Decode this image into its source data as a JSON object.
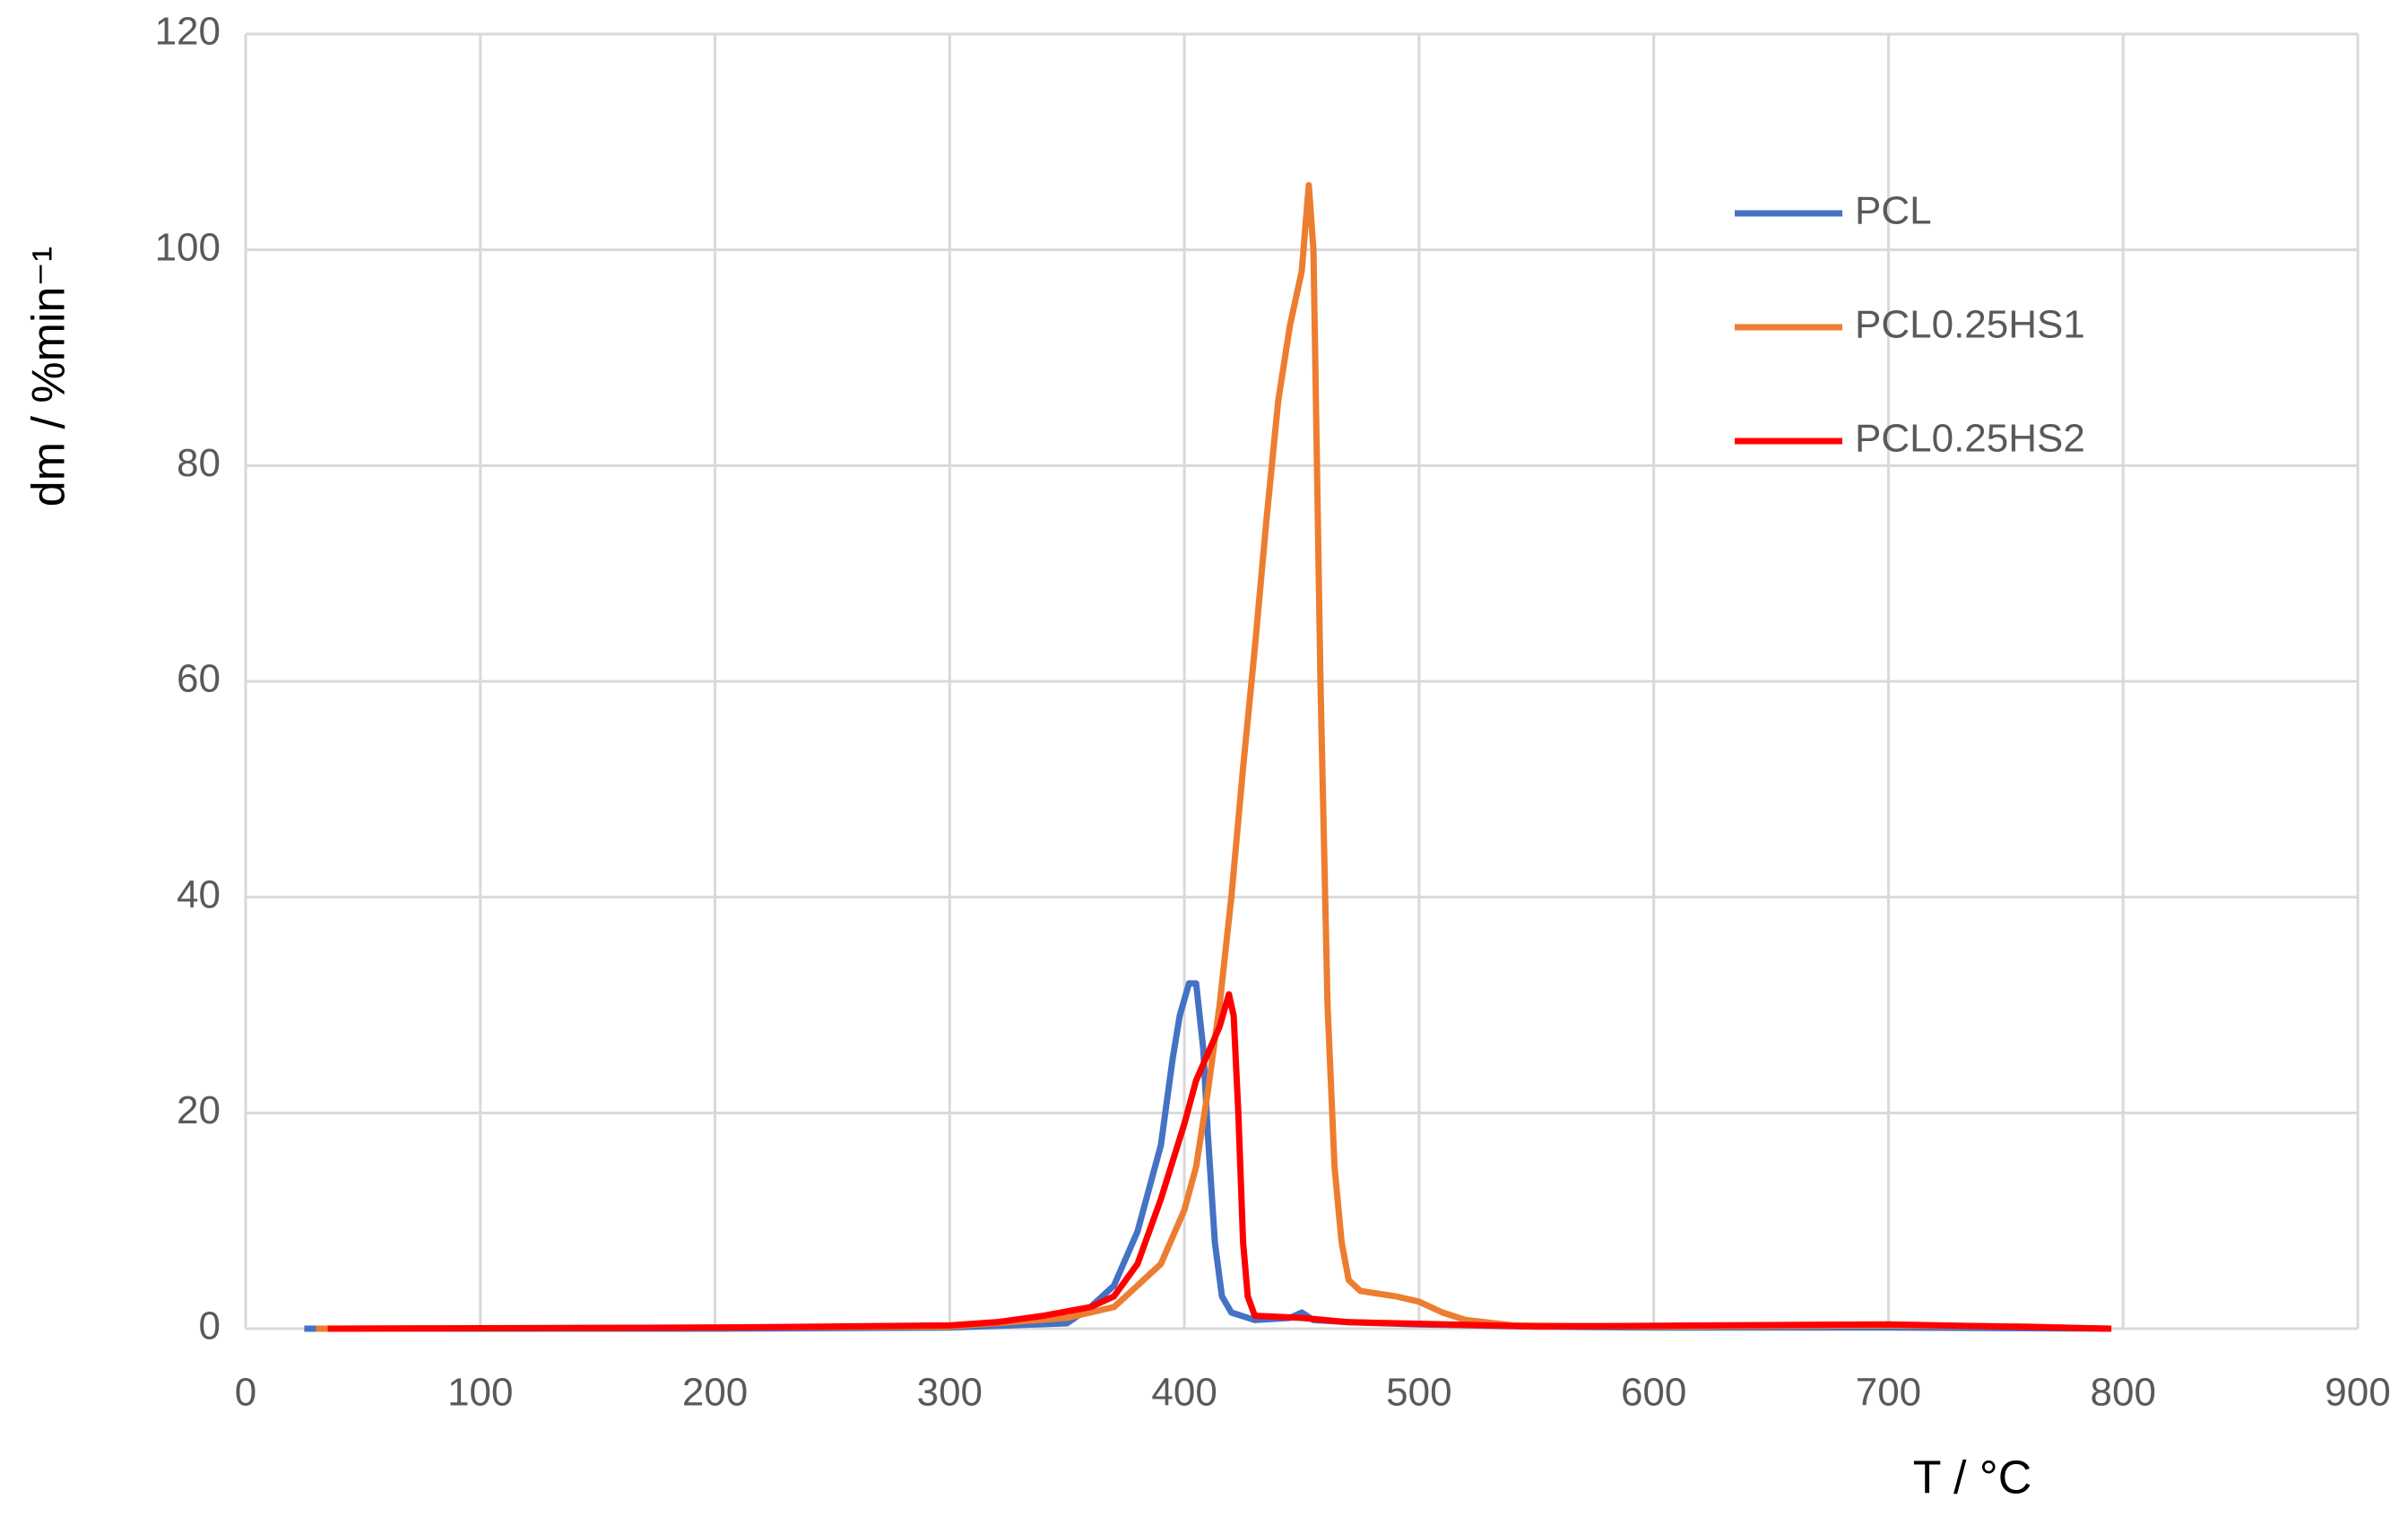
{
  "chart_data": {
    "type": "line",
    "xlabel": "T / °C",
    "ylabel": "dm / %min⁻¹",
    "xlim": [
      0,
      900
    ],
    "xticks": [
      0,
      100,
      200,
      300,
      400,
      500,
      600,
      700,
      800,
      900
    ],
    "ylim": [
      0,
      120
    ],
    "yticks": [
      0,
      20,
      40,
      60,
      80,
      100,
      120
    ],
    "grid": true,
    "legend": "upper right",
    "series": [
      {
        "name": "PCL",
        "color": "#4472c4",
        "x": [
          25,
          100,
          200,
          300,
          350,
          360,
          370,
          380,
          390,
          395,
          398,
          402,
          405,
          408,
          410,
          413,
          416,
          420,
          430,
          445,
          450,
          455,
          470,
          500,
          550,
          600,
          700,
          795
        ],
        "values": [
          0,
          0,
          0,
          0.1,
          0.5,
          2,
          4,
          9,
          17,
          25,
          29,
          32,
          32,
          26,
          18,
          8,
          3,
          1.5,
          0.8,
          1,
          1.5,
          0.8,
          0.6,
          0.4,
          0.2,
          0.1,
          0.1,
          0
        ]
      },
      {
        "name": "PCL0.25HS1",
        "color": "#ed7d31",
        "x": [
          30,
          200,
          300,
          350,
          370,
          380,
          390,
          400,
          405,
          410,
          415,
          420,
          425,
          430,
          435,
          440,
          445,
          450,
          453,
          455,
          458,
          461,
          464,
          467,
          470,
          475,
          490,
          500,
          510,
          520,
          540,
          600,
          700,
          760,
          790
        ],
        "values": [
          0,
          0.1,
          0.2,
          1,
          2,
          4,
          6,
          11,
          15,
          22,
          30,
          40,
          52,
          63,
          75,
          86,
          93,
          98,
          106,
          100,
          60,
          30,
          15,
          8,
          4.5,
          3.5,
          3,
          2.5,
          1.5,
          0.8,
          0.3,
          0.2,
          0.3,
          0.2,
          0
        ]
      },
      {
        "name": "PCL0.25HS2",
        "color": "#ff0000",
        "x": [
          35,
          200,
          300,
          320,
          340,
          360,
          370,
          380,
          390,
          400,
          405,
          410,
          415,
          419,
          421,
          423,
          425,
          427,
          430,
          450,
          470,
          550,
          700,
          795
        ],
        "values": [
          0,
          0.1,
          0.3,
          0.6,
          1.2,
          2,
          3,
          6,
          12,
          19,
          23,
          25.5,
          28,
          31,
          29,
          20,
          8,
          3,
          1.2,
          1,
          0.6,
          0.2,
          0.4,
          0
        ]
      }
    ]
  }
}
